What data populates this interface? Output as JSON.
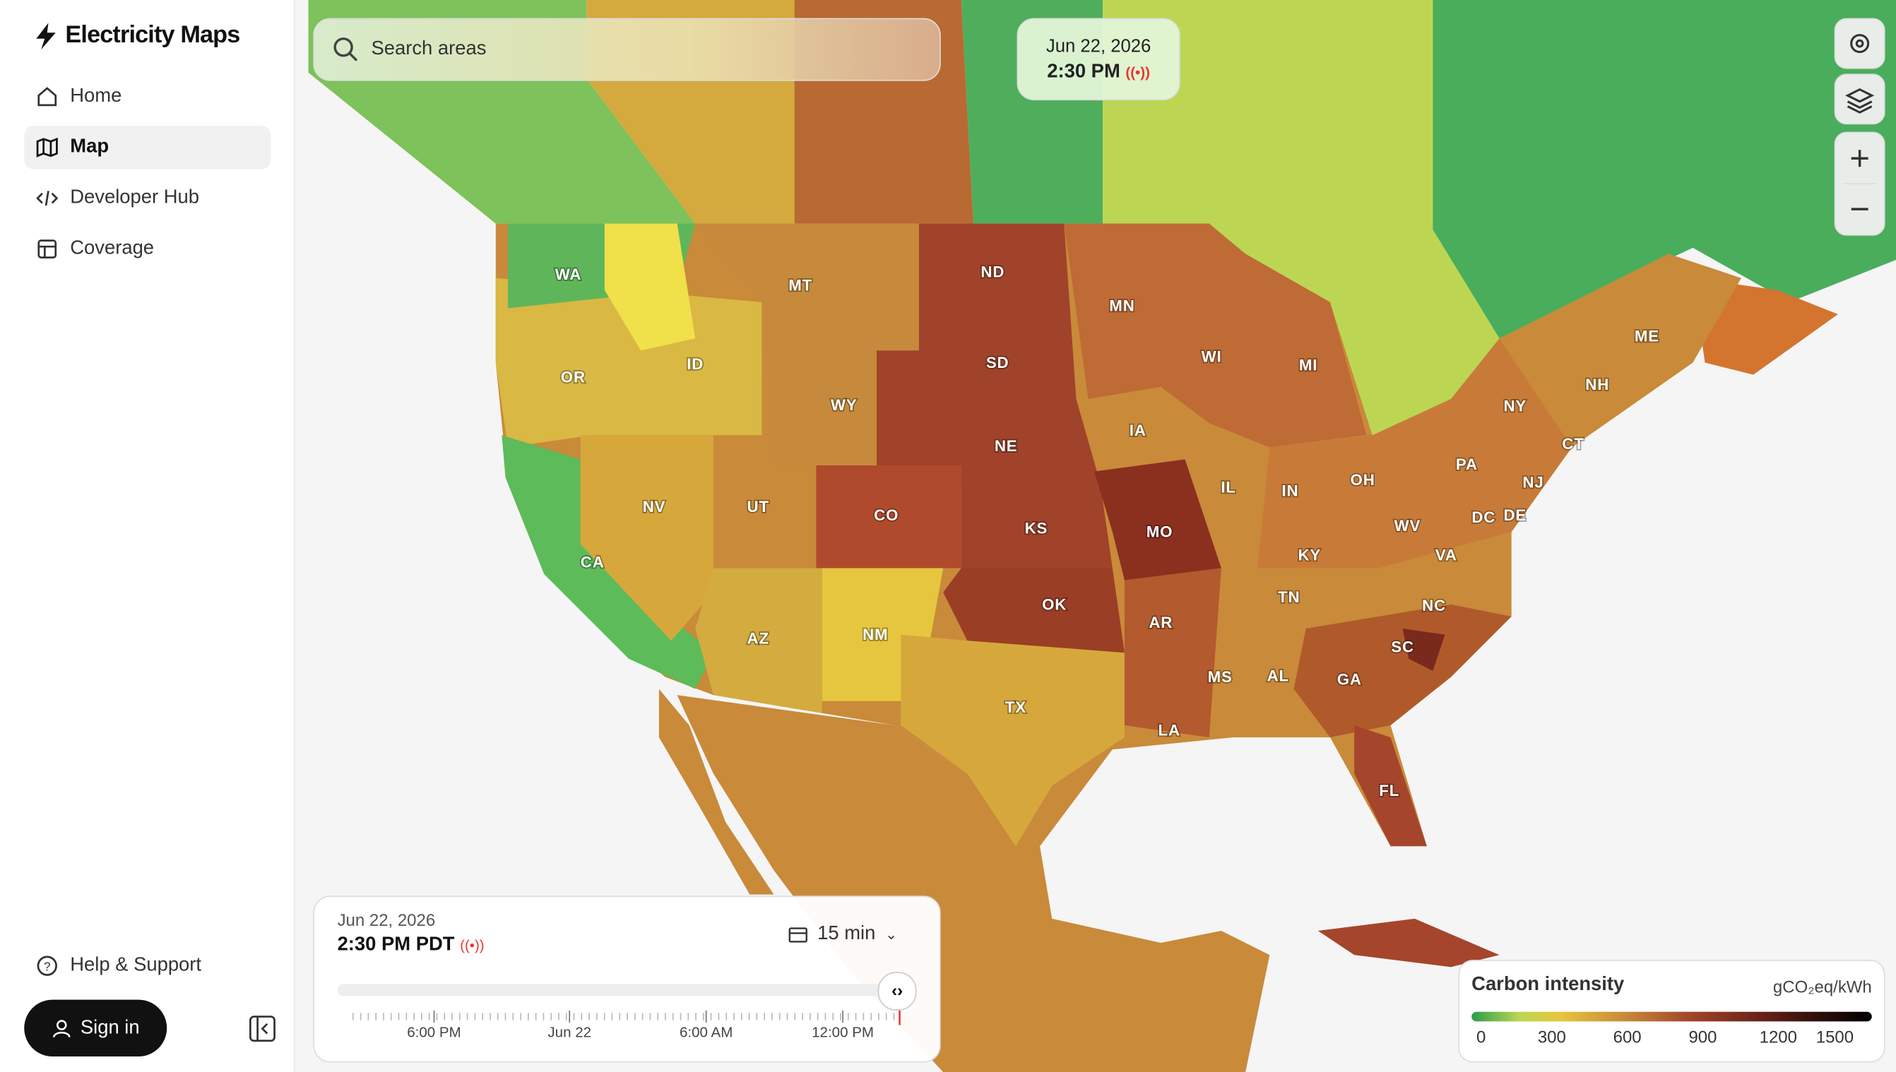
{
  "sidebar": {
    "brand": "Electricity Maps",
    "nav": [
      "Home",
      "Map",
      "Developer Hub",
      "Coverage"
    ],
    "help": "Help & Support",
    "sign_in": "Sign in"
  },
  "search": {
    "placeholder": "Search areas"
  },
  "time_badge": {
    "date": "Jun 22, 2026",
    "time": "2:30 PM"
  },
  "map": {
    "labels": [
      "WA",
      "MT",
      "ND",
      "MN",
      "SD",
      "WI",
      "MI",
      "ME",
      "ID",
      "OR",
      "NH",
      "WY",
      "NY",
      "IA",
      "CT",
      "NE",
      "PA",
      "OH",
      "NJ",
      "IL",
      "IN",
      "NV",
      "UT",
      "CO",
      "DC",
      "DE",
      "KS",
      "MO",
      "WV",
      "KY",
      "VA",
      "CA",
      "TN",
      "OK",
      "NC",
      "AR",
      "NM",
      "SC",
      "AZ",
      "AL",
      "MS",
      "GA",
      "TX",
      "LA",
      "FL"
    ]
  },
  "timeline": {
    "date": "Jun 22, 2026",
    "time": "2:30 PM PDT",
    "interval": "15 min",
    "ticks": [
      "6:00 PM",
      "Jun 22",
      "6:00 AM",
      "12:00 PM"
    ]
  },
  "legend": {
    "title": "Carbon intensity",
    "unit": "gCO₂eq/kWh",
    "ticks": [
      0,
      300,
      600,
      900,
      1200,
      1500
    ]
  }
}
